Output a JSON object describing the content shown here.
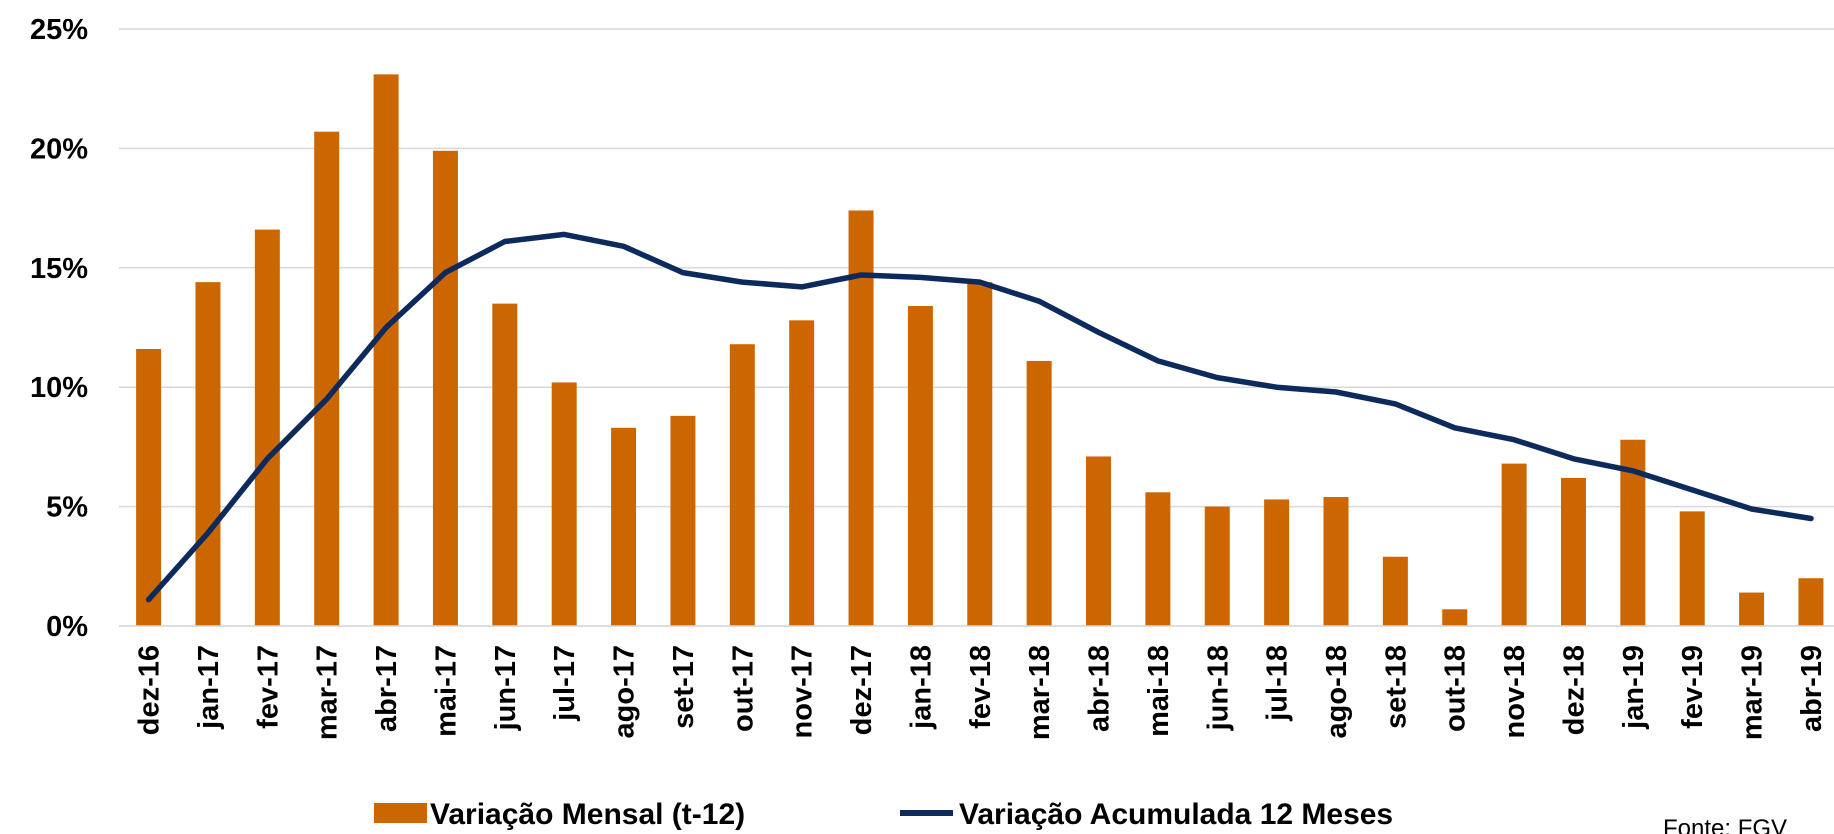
{
  "chart_data": {
    "type": "bar_line",
    "categories": [
      "dez-16",
      "jan-17",
      "fev-17",
      "mar-17",
      "abr-17",
      "mai-17",
      "jun-17",
      "jul-17",
      "ago-17",
      "set-17",
      "out-17",
      "nov-17",
      "dez-17",
      "jan-18",
      "fev-18",
      "mar-18",
      "abr-18",
      "mai-18",
      "jun-18",
      "jul-18",
      "ago-18",
      "set-18",
      "out-18",
      "nov-18",
      "dez-18",
      "jan-19",
      "fev-19",
      "mar-19",
      "abr-19"
    ],
    "series": [
      {
        "name": "Variação Mensal (t-12)",
        "type": "bar",
        "color": "#cc6600",
        "values": [
          11.6,
          14.4,
          16.6,
          20.7,
          23.1,
          19.9,
          13.5,
          10.2,
          8.3,
          8.8,
          11.8,
          12.8,
          17.4,
          13.4,
          14.4,
          11.1,
          7.1,
          5.6,
          5.0,
          5.3,
          5.4,
          2.9,
          0.7,
          6.8,
          6.2,
          7.8,
          4.8,
          1.4,
          2.0
        ]
      },
      {
        "name": "Variação Acumulada 12 Meses",
        "type": "line",
        "color": "#0d2a5c",
        "values": [
          1.1,
          3.9,
          7.0,
          9.5,
          12.5,
          14.8,
          16.1,
          16.4,
          15.9,
          14.8,
          14.4,
          14.2,
          14.7,
          14.6,
          14.4,
          13.6,
          12.3,
          11.1,
          10.4,
          10.0,
          9.8,
          9.3,
          8.3,
          7.8,
          7.0,
          6.5,
          5.7,
          4.9,
          4.5
        ]
      }
    ],
    "ylim": [
      0,
      25
    ],
    "yticks": [
      {
        "value": 0,
        "label": "0%"
      },
      {
        "value": 5,
        "label": "5%"
      },
      {
        "value": 10,
        "label": "10%"
      },
      {
        "value": 15,
        "label": "15%"
      },
      {
        "value": 20,
        "label": "20%"
      },
      {
        "value": 25,
        "label": "25%"
      }
    ],
    "grid": true,
    "annotation": "Fonte: FGV"
  }
}
